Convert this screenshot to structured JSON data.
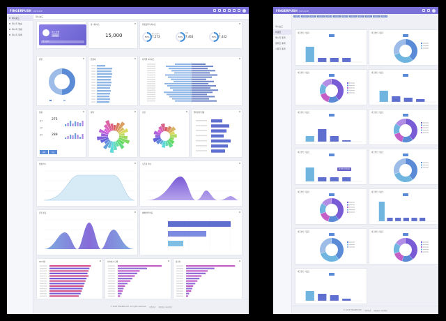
{
  "app": {
    "brand": "FINGERPUSH",
    "brand_sub": "console"
  },
  "window1": {
    "sidebar": [
      {
        "label": "대시보드",
        "active": true
      },
      {
        "label": "메시지 발송",
        "active": false
      },
      {
        "label": "메시지 현황",
        "active": false
      },
      {
        "label": "메시지 목록",
        "active": false
      }
    ],
    "breadcrumb": "대시보드",
    "user": {
      "name": "테스트앱",
      "role": "관리자",
      "bar": "앱 키 관리"
    },
    "kpi": {
      "title": "총 디바이스",
      "value": "15,000"
    },
    "rings": {
      "title": "플랫폼별 디바이스",
      "items": [
        {
          "pct": "50%",
          "label": "안드로이드",
          "value": "7,573"
        },
        {
          "pct": "50%",
          "label": "iOS",
          "value": "7,463"
        },
        {
          "pct": "50%",
          "label": "웹",
          "value": "7,442"
        }
      ]
    },
    "cards": {
      "gender": "성별",
      "age": "연령대",
      "region": "지역별 디바이스",
      "summary": "현황",
      "month": "월별",
      "day": "요일",
      "time": "시간대별",
      "version": "앱버전별 현황",
      "trend1": "발송추이",
      "trend2": "오픈율 추이",
      "trend3": "요일 분포",
      "campaign": "캠페인별 반응",
      "os1": "OS 버전",
      "os2": "디바이스 모델",
      "os3": "통신사"
    },
    "summary": {
      "v1": "275",
      "v2": "289",
      "l1": "발송",
      "l2": "오픈",
      "l3": "클릭",
      "b1": "전체",
      "b2": "오늘"
    },
    "footer": [
      "© 2024 FINGERPUSH. All rights reserved.",
      "이용약관",
      "개인정보 처리방침"
    ],
    "colors": {
      "accent": "#7a72d9",
      "blue": "#5b8bd6",
      "purple": "#8e6fd6",
      "pink": "#c45fc7"
    }
  },
  "window2": {
    "sidebar": [
      {
        "label": "대시보드",
        "active": false
      },
      {
        "label": "리포트",
        "active": true
      },
      {
        "label": "메시지 통계",
        "active": false
      },
      {
        "label": "캠페인 통계",
        "active": false
      },
      {
        "label": "사용자 통계",
        "active": false
      }
    ],
    "tabs": [
      "세그먼트 A",
      "세그먼트 B",
      "세그먼트 C",
      "세그먼트 D",
      "세그먼트 E",
      "세그먼트 F",
      "세그먼트 G",
      "세그먼트 H",
      "세그먼트 I",
      "세그먼트 J",
      "세그먼트 K",
      "세그먼트 L"
    ],
    "card_title": "세그먼트 리포트",
    "tooltip": "세그먼트 타겟 발송",
    "footer": [
      "© 2024 FINGERPUSH",
      "이용약관",
      "개인정보 처리방침"
    ]
  }
}
